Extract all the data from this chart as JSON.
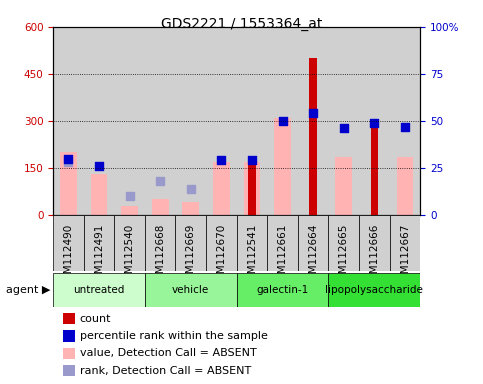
{
  "title": "GDS2221 / 1553364_at",
  "samples": [
    "GSM112490",
    "GSM112491",
    "GSM112540",
    "GSM112668",
    "GSM112669",
    "GSM112670",
    "GSM112541",
    "GSM112661",
    "GSM112664",
    "GSM112665",
    "GSM112666",
    "GSM112667"
  ],
  "count": [
    0,
    0,
    0,
    0,
    0,
    0,
    175,
    0,
    500,
    0,
    300,
    0
  ],
  "value_absent": [
    200,
    130,
    30,
    50,
    40,
    170,
    170,
    310,
    0,
    185,
    0,
    185
  ],
  "pct_rank": [
    30,
    26,
    0,
    0,
    0,
    29,
    29,
    50,
    54,
    46,
    49,
    47
  ],
  "rank_absent": [
    28,
    0,
    10,
    18,
    14,
    0,
    0,
    0,
    0,
    0,
    0,
    0
  ],
  "agents": [
    {
      "label": "untreated",
      "start": 0,
      "end": 3,
      "color": "#cdfccd"
    },
    {
      "label": "vehicle",
      "start": 3,
      "end": 6,
      "color": "#99f599"
    },
    {
      "label": "galectin-1",
      "start": 6,
      "end": 9,
      "color": "#66ee66"
    },
    {
      "label": "lipopolysaccharide",
      "start": 9,
      "end": 12,
      "color": "#33e033"
    }
  ],
  "ylim_left": [
    0,
    600
  ],
  "ylim_right": [
    0,
    100
  ],
  "yticks_left": [
    0,
    150,
    300,
    450,
    600
  ],
  "yticks_right": [
    0,
    25,
    50,
    75,
    100
  ],
  "ytick_right_labels": [
    "0",
    "25",
    "50",
    "75",
    "100%"
  ],
  "bar_color_count": "#cc0000",
  "bar_color_absent": "#ffb3b3",
  "dot_color_rank": "#0000cc",
  "dot_color_rank_absent": "#9999cc",
  "title_fontsize": 10,
  "tick_fontsize": 7.5,
  "legend_fontsize": 8
}
